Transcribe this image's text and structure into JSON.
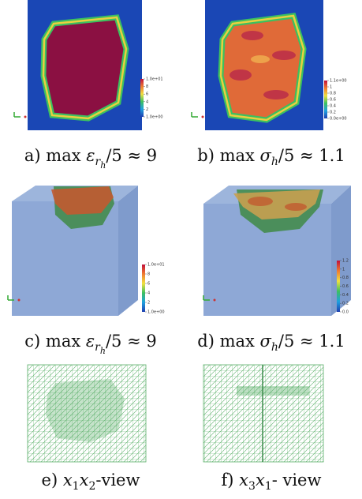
{
  "panels": [
    {
      "caption": [
        "a) max ",
        "ε",
        "r",
        "h",
        "/5 ≈ 9"
      ],
      "colorbar": [
        "1.0e+01",
        "8",
        "6",
        "4",
        "2",
        "1.0e+00"
      ]
    },
    {
      "caption": [
        "b) max ",
        "σ",
        "h",
        "/5 ≈ 1.1"
      ],
      "colorbar": [
        "1.1e+00",
        "1",
        "0.8",
        "0.6",
        "0.4",
        "0.2",
        "0.0e+00"
      ]
    },
    {
      "caption": [
        "c) max ",
        "ε",
        "r",
        "h",
        "/5 ≈ 9"
      ],
      "colorbar": [
        "1.0e+01",
        "8",
        "6",
        "4",
        "2",
        "1.0e+00"
      ]
    },
    {
      "caption": [
        "d) max ",
        "σ",
        "h",
        "/5 ≈ 1.1"
      ],
      "colorbar": [
        "1.2",
        "1",
        "0.8",
        "0.6",
        "0.4",
        "0.2",
        "0.0"
      ]
    },
    {
      "caption": [
        "e) ",
        "x",
        "1",
        "x",
        "2",
        "-view"
      ]
    },
    {
      "caption": [
        "f) ",
        "x",
        "3",
        "x",
        "1",
        "- view"
      ]
    }
  ]
}
